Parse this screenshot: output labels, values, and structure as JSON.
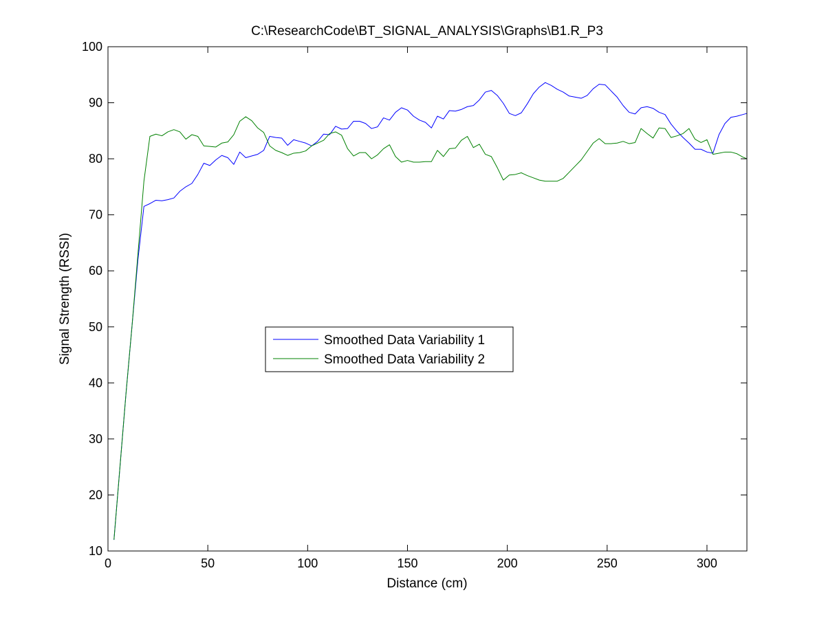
{
  "chart_data": {
    "type": "line",
    "title": "C:\\ResearchCode\\BT_SIGNAL_ANALYSIS\\Graphs\\B1.R_P3",
    "xlabel": "Distance (cm)",
    "ylabel": "Signal Strength (RSSI)",
    "xlim": [
      0,
      320
    ],
    "ylim": [
      10,
      100
    ],
    "xticks": [
      0,
      50,
      100,
      150,
      200,
      250,
      300
    ],
    "yticks": [
      10,
      20,
      30,
      40,
      50,
      60,
      70,
      80,
      90,
      100
    ],
    "grid": false,
    "legend_position": "center-left",
    "series": [
      {
        "name": "Smoothed Data Variability 1",
        "color": "#0000ff",
        "x": [
          3,
          6,
          9,
          12,
          15,
          18,
          21,
          24,
          27,
          30,
          33,
          36,
          39,
          42,
          45,
          48,
          51,
          54,
          57,
          60,
          63,
          66,
          69,
          72,
          75,
          78,
          81,
          84,
          87,
          90,
          93,
          96,
          99,
          102,
          105,
          108,
          111,
          114,
          117,
          120,
          123,
          126,
          129,
          132,
          135,
          138,
          141,
          144,
          147,
          150,
          153,
          156,
          159,
          162,
          165,
          168,
          171,
          174,
          177,
          180,
          183,
          186,
          189,
          192,
          195,
          198,
          201,
          204,
          207,
          210,
          213,
          216,
          219,
          222,
          225,
          228,
          231,
          234,
          237,
          240,
          243,
          246,
          249,
          252,
          255,
          258,
          261,
          264,
          267,
          270,
          273,
          276,
          279,
          282,
          285,
          288,
          291,
          294,
          297,
          300,
          303,
          306,
          309,
          312,
          315,
          318,
          320
        ],
        "values": [
          12,
          25,
          38,
          50,
          62,
          71.5,
          72,
          72.6,
          72.5,
          72.7,
          73,
          74.2,
          75,
          75.6,
          77.2,
          79.2,
          78.8,
          79.8,
          80.6,
          80.2,
          79,
          81.2,
          80.2,
          80.5,
          80.8,
          81.5,
          84,
          83.8,
          83.7,
          82.4,
          83.4,
          83.1,
          82.8,
          82.3,
          83.1,
          84.4,
          84.3,
          85.8,
          85.3,
          85.4,
          86.7,
          86.7,
          86.3,
          85.4,
          85.7,
          87.3,
          86.9,
          88.3,
          89.1,
          88.7,
          87.6,
          86.9,
          86.5,
          85.5,
          87.6,
          87.1,
          88.6,
          88.5,
          88.8,
          89.3,
          89.5,
          90.5,
          91.9,
          92.2,
          91.3,
          89.9,
          88.1,
          87.7,
          88.2,
          89.8,
          91.6,
          92.8,
          93.6,
          93.1,
          92.4,
          91.9,
          91.2,
          91,
          90.8,
          91.3,
          92.5,
          93.3,
          93.2,
          92.1,
          91,
          89.5,
          88.3,
          88,
          89.1,
          89.3,
          89,
          88.3,
          87.9,
          86.2,
          84.9,
          83.8,
          82.8,
          81.7,
          81.7,
          81.2,
          81,
          84.3,
          86.3,
          87.4,
          87.6,
          87.9,
          88.1
        ]
      },
      {
        "name": "Smoothed Data Variability 2",
        "color": "#008000",
        "x": [
          3,
          6,
          9,
          12,
          15,
          18,
          21,
          24,
          27,
          30,
          33,
          36,
          39,
          42,
          45,
          48,
          51,
          54,
          57,
          60,
          63,
          66,
          69,
          72,
          75,
          78,
          81,
          84,
          87,
          90,
          93,
          96,
          99,
          102,
          105,
          108,
          111,
          114,
          117,
          120,
          123,
          126,
          129,
          132,
          135,
          138,
          141,
          144,
          147,
          150,
          153,
          156,
          159,
          162,
          165,
          168,
          171,
          174,
          177,
          180,
          183,
          186,
          189,
          192,
          195,
          198,
          201,
          204,
          207,
          210,
          213,
          216,
          219,
          222,
          225,
          228,
          231,
          234,
          237,
          240,
          243,
          246,
          249,
          252,
          255,
          258,
          261,
          264,
          267,
          270,
          273,
          276,
          279,
          282,
          285,
          288,
          291,
          294,
          297,
          300,
          303,
          306,
          309,
          312,
          315,
          318,
          320
        ],
        "values": [
          12,
          25,
          38,
          50,
          63,
          76,
          84,
          84.4,
          84.1,
          84.8,
          85.2,
          84.8,
          83.5,
          84.3,
          84,
          82.3,
          82.2,
          82.1,
          82.8,
          83,
          84.3,
          86.7,
          87.5,
          86.8,
          85.5,
          84.7,
          82.3,
          81.5,
          81.1,
          80.6,
          81,
          81.1,
          81.4,
          82.3,
          82.8,
          83.3,
          84.5,
          84.8,
          84.2,
          81.8,
          80.5,
          81.1,
          81.1,
          80,
          80.7,
          81.8,
          82.5,
          80.4,
          79.4,
          79.7,
          79.4,
          79.4,
          79.5,
          79.5,
          81.5,
          80.4,
          81.8,
          81.9,
          83.3,
          84,
          82,
          82.6,
          80.8,
          80.4,
          78.4,
          76.2,
          77.1,
          77.2,
          77.5,
          77,
          76.6,
          76.2,
          76,
          76,
          76,
          76.5,
          77.6,
          78.7,
          79.8,
          81.3,
          82.8,
          83.6,
          82.7,
          82.7,
          82.8,
          83.1,
          82.7,
          82.9,
          85.4,
          84.5,
          83.7,
          85.5,
          85.4,
          83.8,
          84.1,
          84.5,
          85.4,
          83.5,
          82.9,
          83.4,
          80.8,
          81,
          81.2,
          81.2,
          80.9,
          80.3,
          80
        ]
      }
    ]
  }
}
